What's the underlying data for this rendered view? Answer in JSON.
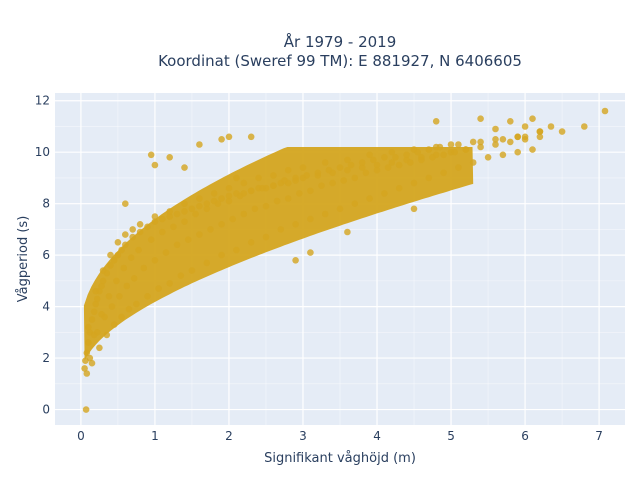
{
  "chart_data": {
    "type": "scatter",
    "title_lines": [
      "År 1979 - 2019",
      "Koordinat (Sweref 99 TM): E 881927, N 6406605"
    ],
    "xlabel": "Signifikant våghöjd (m)",
    "ylabel": "Vågperiod (s)",
    "xlim": [
      -0.35,
      7.35
    ],
    "ylim": [
      -0.6,
      12.3
    ],
    "x_ticks": [
      0,
      1,
      2,
      3,
      4,
      5,
      6,
      7
    ],
    "y_ticks": [
      0,
      2,
      4,
      6,
      8,
      10,
      12
    ],
    "grid": true,
    "marker_color": "#d4a51f",
    "plot_background": "#e5ecf6",
    "series": [
      {
        "x": [
          0.05,
          0.08,
          0.1,
          0.12,
          0.15,
          0.18,
          0.2,
          0.22,
          0.25,
          0.28,
          0.3,
          0.35,
          0.4,
          0.45,
          0.5,
          0.55,
          0.6,
          0.7,
          0.8,
          0.9,
          1.0,
          1.1,
          1.2,
          1.3,
          1.4,
          1.5,
          1.6,
          1.7,
          1.8,
          1.9,
          2.0,
          2.1,
          2.2,
          2.3,
          2.4,
          2.5,
          2.6,
          2.7,
          2.8,
          2.9,
          3.0,
          3.2,
          3.4,
          3.6,
          3.8,
          4.0,
          4.2,
          4.4,
          4.6,
          4.8,
          5.0,
          5.2,
          5.4,
          5.6,
          5.8,
          6.0,
          6.2,
          6.5,
          6.8,
          7.08,
          0.08,
          0.15,
          0.25,
          0.35,
          0.45,
          0.55,
          0.65,
          0.75,
          0.9,
          1.05,
          1.2,
          1.35,
          1.5,
          1.7,
          1.9,
          2.1,
          2.3,
          2.5,
          2.7,
          2.9,
          3.1,
          3.3,
          3.5,
          3.7,
          3.9,
          4.1,
          4.3,
          4.5,
          4.7,
          4.9,
          5.1,
          5.3,
          5.5,
          5.7,
          5.9,
          6.1,
          0.1,
          0.2,
          0.3,
          0.4,
          0.5,
          0.6,
          0.7,
          0.8,
          1.0,
          1.2,
          1.4,
          1.6,
          1.8,
          2.0,
          2.2,
          2.4,
          2.6,
          2.8,
          3.0,
          3.3,
          3.6,
          3.9,
          4.2,
          4.5,
          4.8,
          5.1,
          5.4,
          5.7,
          6.0,
          0.12,
          0.22,
          0.32,
          0.42,
          0.52,
          0.62,
          0.72,
          0.85,
          1.0,
          1.15,
          1.3,
          1.45,
          1.6,
          1.75,
          1.9,
          2.05,
          2.2,
          2.35,
          2.5,
          2.65,
          2.8,
          2.95,
          3.1,
          3.25,
          3.4,
          3.55,
          3.7,
          3.85,
          4.0,
          4.15,
          4.3,
          4.45,
          4.6,
          4.75,
          4.9,
          5.05,
          5.2,
          0.06,
          0.18,
          0.28,
          0.38,
          0.48,
          0.58,
          0.68,
          0.78,
          0.95,
          1.1,
          1.25,
          1.4,
          1.55,
          1.7,
          1.85,
          2.0,
          2.15,
          2.3,
          2.45,
          2.6,
          2.75,
          2.9,
          3.05,
          3.2,
          3.35,
          3.5,
          3.65,
          3.8,
          3.95,
          4.1,
          4.25,
          4.4,
          4.55,
          4.7,
          4.85,
          5.0,
          5.3,
          5.6,
          5.9,
          6.2,
          0.07,
          2.9,
          3.1,
          3.6,
          4.5,
          4.8,
          5.4,
          5.6,
          5.8,
          5.9,
          6.0,
          6.1,
          6.2,
          6.35,
          1.4,
          1.6,
          1.9,
          2.0,
          2.1,
          2.3,
          1.2,
          1.0,
          0.95,
          0.6
        ],
        "y": [
          1.6,
          2.2,
          2.6,
          3.0,
          3.5,
          3.8,
          4.1,
          4.3,
          4.6,
          4.8,
          5.0,
          5.3,
          5.6,
          5.8,
          6.0,
          6.2,
          6.4,
          6.7,
          6.9,
          7.1,
          7.3,
          7.4,
          7.5,
          7.6,
          7.7,
          7.8,
          7.9,
          8.0,
          8.1,
          8.2,
          8.3,
          8.4,
          8.4,
          8.5,
          8.6,
          8.6,
          8.7,
          8.8,
          8.8,
          8.9,
          9.0,
          9.1,
          9.2,
          9.3,
          9.4,
          9.5,
          9.6,
          9.7,
          9.8,
          9.9,
          10.0,
          10.1,
          10.2,
          10.3,
          10.4,
          10.5,
          10.6,
          10.8,
          11.0,
          11.6,
          1.4,
          1.8,
          2.4,
          2.9,
          3.3,
          3.6,
          3.9,
          4.1,
          4.4,
          4.7,
          4.9,
          5.2,
          5.4,
          5.7,
          6.0,
          6.2,
          6.5,
          6.7,
          7.0,
          7.2,
          7.4,
          7.6,
          7.8,
          8.0,
          8.2,
          8.4,
          8.6,
          8.8,
          9.0,
          9.2,
          9.4,
          9.6,
          9.8,
          9.9,
          10.0,
          10.1,
          3.2,
          4.6,
          5.4,
          6.0,
          6.5,
          6.8,
          7.0,
          7.2,
          7.5,
          7.7,
          8.0,
          8.2,
          8.4,
          8.6,
          8.8,
          9.0,
          9.1,
          9.3,
          9.4,
          9.6,
          9.7,
          9.9,
          10.0,
          10.1,
          10.2,
          10.3,
          10.4,
          10.5,
          10.6,
          2.0,
          3.0,
          3.6,
          4.0,
          4.4,
          4.8,
          5.1,
          5.5,
          5.8,
          6.1,
          6.4,
          6.6,
          6.8,
          7.0,
          7.2,
          7.4,
          7.6,
          7.8,
          7.9,
          8.1,
          8.2,
          8.4,
          8.5,
          8.7,
          8.8,
          8.9,
          9.0,
          9.2,
          9.3,
          9.4,
          9.5,
          9.6,
          9.7,
          9.8,
          9.9,
          10.0,
          10.1,
          1.9,
          2.9,
          3.7,
          4.4,
          5.0,
          5.5,
          5.9,
          6.2,
          6.6,
          6.9,
          7.1,
          7.3,
          7.6,
          7.8,
          8.0,
          8.1,
          8.3,
          8.5,
          8.6,
          8.7,
          8.9,
          9.0,
          9.1,
          9.2,
          9.3,
          9.4,
          9.5,
          9.6,
          9.7,
          9.8,
          9.8,
          9.9,
          10.0,
          10.1,
          10.2,
          10.3,
          10.4,
          10.5,
          10.6,
          10.8,
          0.0,
          5.8,
          6.1,
          6.9,
          7.8,
          11.2,
          11.3,
          10.9,
          11.2,
          10.6,
          11.0,
          11.3,
          10.8,
          11.0,
          9.4,
          10.3,
          10.5,
          10.6,
          9.0,
          10.6,
          9.8,
          9.5,
          9.9,
          8.0
        ]
      }
    ]
  }
}
